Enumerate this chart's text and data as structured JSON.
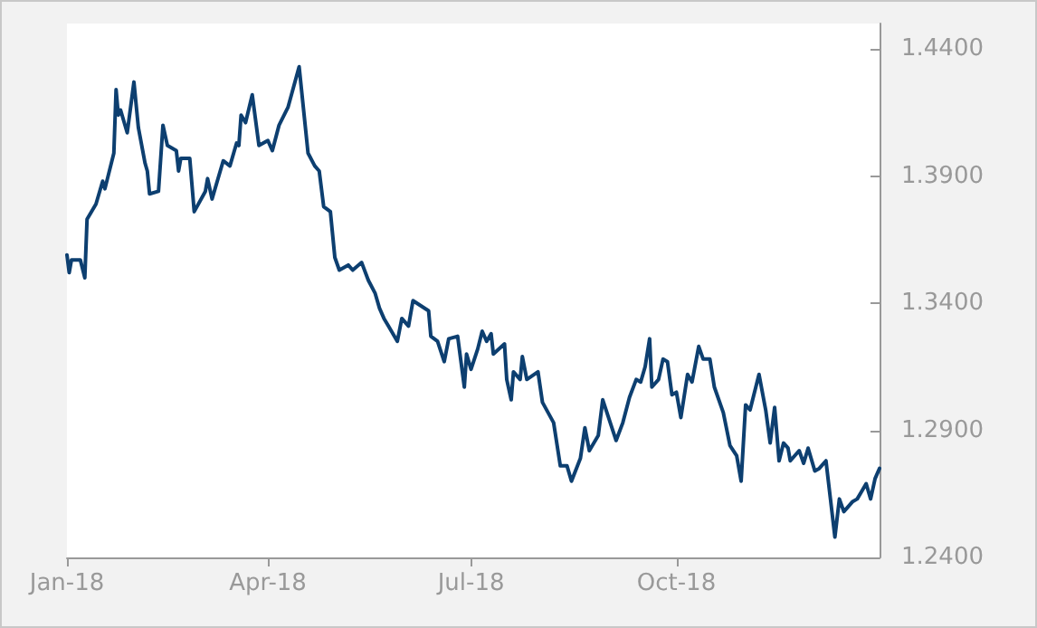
{
  "chart_data": {
    "type": "line",
    "x": [
      "2018-01-01",
      "2018-01-02",
      "2018-01-03",
      "2018-01-07",
      "2018-01-09",
      "2018-01-10",
      "2018-01-14",
      "2018-01-17",
      "2018-01-18",
      "2018-01-22",
      "2018-01-23",
      "2018-01-24",
      "2018-01-25",
      "2018-01-28",
      "2018-01-31",
      "2018-02-02",
      "2018-02-05",
      "2018-02-06",
      "2018-02-07",
      "2018-02-11",
      "2018-02-13",
      "2018-02-15",
      "2018-02-19",
      "2018-02-20",
      "2018-02-21",
      "2018-02-25",
      "2018-02-27",
      "2018-03-04",
      "2018-03-05",
      "2018-03-07",
      "2018-03-12",
      "2018-03-15",
      "2018-03-18",
      "2018-03-19",
      "2018-03-20",
      "2018-03-22",
      "2018-03-25",
      "2018-03-28",
      "2018-04-01",
      "2018-04-03",
      "2018-04-06",
      "2018-04-10",
      "2018-04-15",
      "2018-04-19",
      "2018-04-22",
      "2018-04-24",
      "2018-04-26",
      "2018-04-29",
      "2018-05-01",
      "2018-05-03",
      "2018-05-07",
      "2018-05-09",
      "2018-05-13",
      "2018-05-16",
      "2018-05-19",
      "2018-05-21",
      "2018-05-23",
      "2018-05-25",
      "2018-05-29",
      "2018-05-31",
      "2018-06-03",
      "2018-06-05",
      "2018-06-12",
      "2018-06-13",
      "2018-06-16",
      "2018-06-19",
      "2018-06-21",
      "2018-06-25",
      "2018-06-28",
      "2018-06-29",
      "2018-07-01",
      "2018-07-04",
      "2018-07-06",
      "2018-07-08",
      "2018-07-10",
      "2018-07-11",
      "2018-07-16",
      "2018-07-17",
      "2018-07-19",
      "2018-07-20",
      "2018-07-23",
      "2018-07-24",
      "2018-07-26",
      "2018-07-31",
      "2018-08-02",
      "2018-08-07",
      "2018-08-10",
      "2018-08-13",
      "2018-08-15",
      "2018-08-19",
      "2018-08-21",
      "2018-08-23",
      "2018-08-27",
      "2018-08-29",
      "2018-09-04",
      "2018-09-07",
      "2018-09-10",
      "2018-09-13",
      "2018-09-15",
      "2018-09-17",
      "2018-09-19",
      "2018-09-20",
      "2018-09-23",
      "2018-09-25",
      "2018-09-27",
      "2018-09-29",
      "2018-10-01",
      "2018-10-03",
      "2018-10-06",
      "2018-10-08",
      "2018-10-11",
      "2018-10-13",
      "2018-10-16",
      "2018-10-18",
      "2018-10-22",
      "2018-10-25",
      "2018-10-28",
      "2018-10-30",
      "2018-11-01",
      "2018-11-03",
      "2018-11-07",
      "2018-11-10",
      "2018-11-12",
      "2018-11-14",
      "2018-11-16",
      "2018-11-18",
      "2018-11-20",
      "2018-11-21",
      "2018-11-25",
      "2018-11-27",
      "2018-11-29",
      "2018-12-02",
      "2018-12-04",
      "2018-12-07",
      "2018-12-09",
      "2018-12-11",
      "2018-12-13",
      "2018-12-15",
      "2018-12-19",
      "2018-12-21",
      "2018-12-23",
      "2018-12-25",
      "2018-12-27",
      "2018-12-29",
      "2018-12-31"
    ],
    "series": [
      {
        "color": "#0d3f70",
        "values": [
          1.359,
          1.352,
          1.357,
          1.357,
          1.35,
          1.373,
          1.379,
          1.388,
          1.385,
          1.399,
          1.424,
          1.414,
          1.416,
          1.407,
          1.427,
          1.409,
          1.395,
          1.392,
          1.383,
          1.384,
          1.41,
          1.402,
          1.4,
          1.392,
          1.397,
          1.397,
          1.376,
          1.384,
          1.389,
          1.381,
          1.396,
          1.394,
          1.403,
          1.402,
          1.414,
          1.411,
          1.422,
          1.402,
          1.404,
          1.4,
          1.41,
          1.417,
          1.433,
          1.399,
          1.394,
          1.392,
          1.378,
          1.376,
          1.358,
          1.353,
          1.355,
          1.353,
          1.356,
          1.349,
          1.344,
          1.338,
          1.334,
          1.331,
          1.325,
          1.334,
          1.331,
          1.341,
          1.337,
          1.327,
          1.325,
          1.317,
          1.326,
          1.327,
          1.307,
          1.32,
          1.314,
          1.322,
          1.329,
          1.325,
          1.328,
          1.32,
          1.324,
          1.31,
          1.302,
          1.313,
          1.31,
          1.319,
          1.31,
          1.313,
          1.301,
          1.293,
          1.276,
          1.276,
          1.27,
          1.279,
          1.291,
          1.282,
          1.288,
          1.302,
          1.286,
          1.293,
          1.303,
          1.31,
          1.309,
          1.315,
          1.326,
          1.307,
          1.31,
          1.318,
          1.317,
          1.304,
          1.305,
          1.295,
          1.312,
          1.309,
          1.323,
          1.318,
          1.318,
          1.307,
          1.297,
          1.284,
          1.28,
          1.27,
          1.3,
          1.298,
          1.312,
          1.298,
          1.285,
          1.299,
          1.278,
          1.285,
          1.283,
          1.278,
          1.282,
          1.277,
          1.283,
          1.274,
          1.275,
          1.278,
          1.263,
          1.248,
          1.263,
          1.258,
          1.262,
          1.263,
          1.266,
          1.269,
          1.263,
          1.271,
          1.275
        ]
      }
    ],
    "xlim": [
      "2018-01-01",
      "2018-12-31"
    ],
    "xticks": [
      {
        "value": "2018-01-01",
        "label": "Jan-18"
      },
      {
        "value": "2018-04-01",
        "label": "Apr-18"
      },
      {
        "value": "2018-07-01",
        "label": "Jul-18"
      },
      {
        "value": "2018-10-01",
        "label": "Oct-18"
      }
    ],
    "ylim": [
      1.24,
      1.45
    ],
    "yticks": [
      {
        "value": 1.24,
        "label": "1.2400"
      },
      {
        "value": 1.29,
        "label": "1.2900"
      },
      {
        "value": 1.34,
        "label": "1.3400"
      },
      {
        "value": 1.39,
        "label": "1.3900"
      },
      {
        "value": 1.44,
        "label": "1.4400"
      }
    ],
    "grid": false,
    "marker": "none",
    "line_style": "solid"
  }
}
